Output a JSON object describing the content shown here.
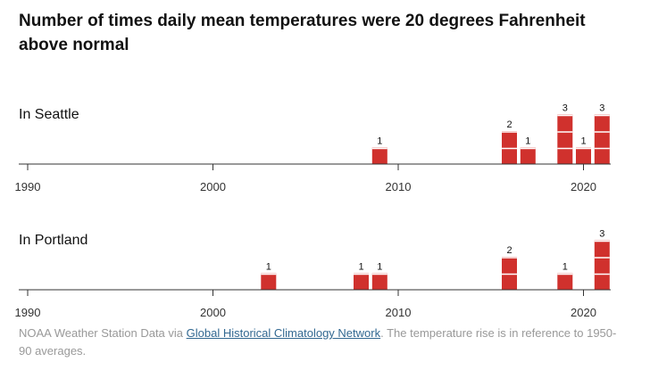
{
  "title": "Number of times daily mean temperatures were 20 degrees Fahrenheit above normal",
  "source": {
    "prefix": "NOAA Weather Station Data via ",
    "link_text": "Global Historical Climatology Network",
    "suffix": ". The temperature rise is in reference to 1950-90 averages."
  },
  "colors": {
    "bar": "#d0312d",
    "axis": "#333333",
    "link": "#326891"
  },
  "chart_data": [
    {
      "type": "bar",
      "title": "In Seattle",
      "xlim": [
        1990,
        2021
      ],
      "xticks": [
        1990,
        2000,
        2010,
        2020
      ],
      "ylim": [
        0,
        3
      ],
      "grid": false,
      "bars": [
        {
          "year": 2009,
          "value": 1
        },
        {
          "year": 2016,
          "value": 2
        },
        {
          "year": 2017,
          "value": 1
        },
        {
          "year": 2019,
          "value": 3
        },
        {
          "year": 2020,
          "value": 1
        },
        {
          "year": 2021,
          "value": 3
        }
      ]
    },
    {
      "type": "bar",
      "title": "In Portland",
      "xlim": [
        1990,
        2021
      ],
      "xticks": [
        1990,
        2000,
        2010,
        2020
      ],
      "ylim": [
        0,
        3
      ],
      "grid": false,
      "bars": [
        {
          "year": 2003,
          "value": 1
        },
        {
          "year": 2008,
          "value": 1
        },
        {
          "year": 2009,
          "value": 1
        },
        {
          "year": 2016,
          "value": 2
        },
        {
          "year": 2019,
          "value": 1
        },
        {
          "year": 2021,
          "value": 3
        }
      ]
    }
  ]
}
